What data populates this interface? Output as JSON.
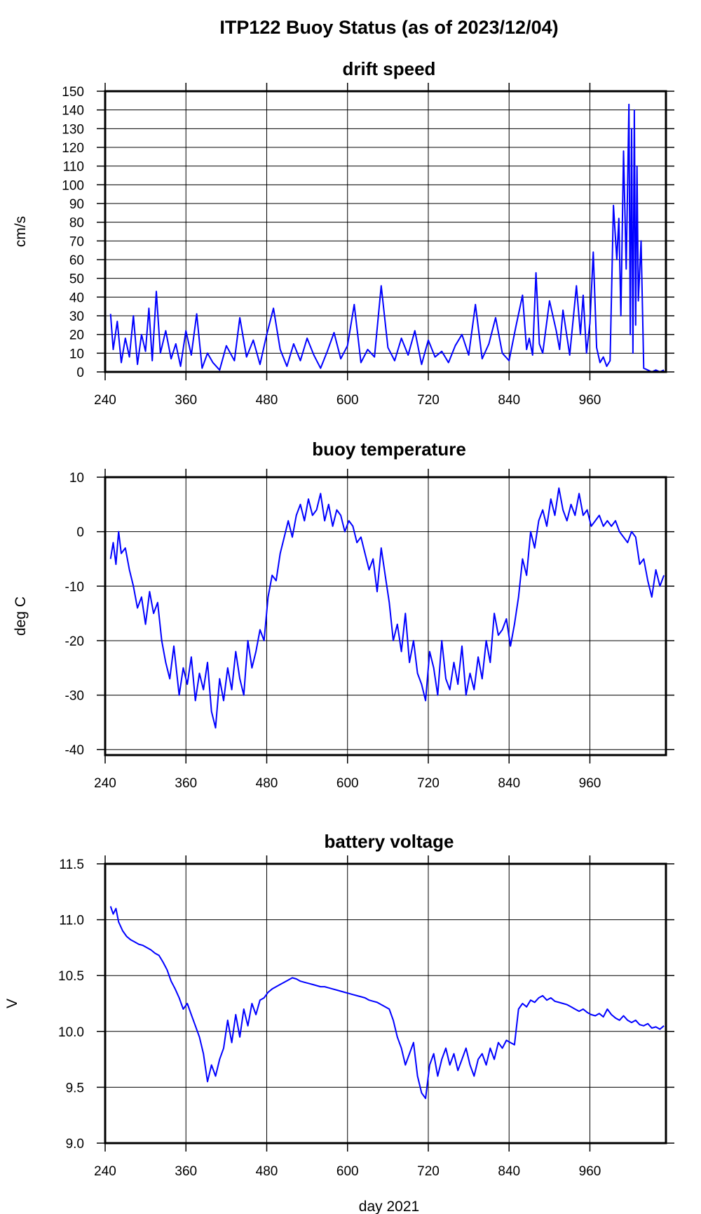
{
  "title": "ITP122 Buoy Status (as of 2023/12/04)",
  "xlabel": "day 2021",
  "colors": {
    "series": "#0000ff",
    "grid": "#000000",
    "background": "#ffffff"
  },
  "chart_data": [
    {
      "type": "line",
      "title": "drift speed",
      "xlabel": "day 2021",
      "ylabel": "cm/s",
      "xlim": [
        240,
        1073
      ],
      "ylim": [
        0,
        150
      ],
      "xticks": [
        240,
        360,
        480,
        600,
        720,
        840,
        960
      ],
      "yticks": [
        0,
        10,
        20,
        30,
        40,
        50,
        60,
        70,
        80,
        90,
        100,
        110,
        120,
        130,
        140,
        150
      ],
      "grid": true,
      "legend": "none",
      "series": [
        {
          "x": [
            248,
            252,
            258,
            264,
            270,
            276,
            282,
            288,
            294,
            300,
            305,
            310,
            316,
            322,
            330,
            338,
            345,
            352,
            360,
            368,
            376,
            384,
            392,
            400,
            410,
            420,
            432,
            440,
            450,
            460,
            470,
            480,
            490,
            500,
            510,
            520,
            530,
            540,
            550,
            560,
            570,
            580,
            590,
            600,
            610,
            620,
            630,
            640,
            650,
            660,
            670,
            680,
            690,
            700,
            710,
            720,
            730,
            740,
            750,
            760,
            770,
            780,
            790,
            800,
            810,
            820,
            830,
            840,
            850,
            860,
            866,
            870,
            875,
            880,
            885,
            890,
            900,
            910,
            915,
            920,
            930,
            940,
            946,
            950,
            955,
            960,
            965,
            970,
            975,
            980,
            985,
            990,
            995,
            1000,
            1003,
            1006,
            1010,
            1014,
            1016,
            1018,
            1020,
            1022,
            1024,
            1026,
            1028,
            1030,
            1032,
            1036,
            1040,
            1046,
            1052,
            1058,
            1064,
            1070
          ],
          "y": [
            31,
            12,
            27,
            5,
            18,
            8,
            30,
            4,
            20,
            11,
            34,
            6,
            43,
            10,
            22,
            7,
            15,
            3,
            22,
            9,
            31,
            2,
            10,
            5,
            1,
            14,
            6,
            29,
            8,
            17,
            4,
            20,
            34,
            12,
            3,
            15,
            6,
            18,
            9,
            2,
            11,
            21,
            7,
            14,
            36,
            5,
            12,
            8,
            46,
            13,
            6,
            18,
            9,
            22,
            4,
            17,
            8,
            11,
            5,
            14,
            20,
            9,
            36,
            7,
            15,
            29,
            10,
            6,
            24,
            41,
            12,
            18,
            9,
            53,
            15,
            10,
            38,
            22,
            12,
            33,
            9,
            46,
            20,
            41,
            10,
            26,
            64,
            13,
            5,
            8,
            3,
            6,
            89,
            60,
            82,
            30,
            118,
            55,
            100,
            143,
            20,
            130,
            10,
            140,
            25,
            110,
            38,
            70,
            2,
            1,
            0,
            1,
            0,
            1
          ]
        }
      ]
    },
    {
      "type": "line",
      "title": "buoy temperature",
      "xlabel": "day 2021",
      "ylabel": "deg C",
      "xlim": [
        240,
        1073
      ],
      "ylim": [
        -41,
        10
      ],
      "xticks": [
        240,
        360,
        480,
        600,
        720,
        840,
        960
      ],
      "yticks": [
        -40,
        -30,
        -20,
        -10,
        0,
        10
      ],
      "grid": true,
      "legend": "none",
      "series": [
        {
          "x": [
            248,
            252,
            256,
            260,
            264,
            270,
            276,
            282,
            288,
            294,
            300,
            306,
            312,
            318,
            324,
            330,
            336,
            342,
            350,
            356,
            362,
            368,
            374,
            380,
            386,
            392,
            398,
            404,
            410,
            416,
            422,
            428,
            434,
            440,
            446,
            452,
            458,
            464,
            470,
            476,
            482,
            488,
            494,
            500,
            506,
            512,
            518,
            524,
            530,
            536,
            542,
            548,
            554,
            560,
            566,
            572,
            578,
            584,
            590,
            596,
            602,
            608,
            614,
            620,
            626,
            632,
            638,
            644,
            650,
            656,
            662,
            668,
            674,
            680,
            686,
            692,
            698,
            704,
            710,
            716,
            722,
            728,
            734,
            740,
            746,
            752,
            758,
            764,
            770,
            776,
            782,
            788,
            794,
            800,
            806,
            812,
            818,
            824,
            830,
            836,
            842,
            848,
            854,
            860,
            866,
            872,
            878,
            884,
            890,
            896,
            902,
            908,
            914,
            920,
            926,
            932,
            938,
            944,
            950,
            956,
            962,
            968,
            974,
            980,
            986,
            992,
            998,
            1004,
            1010,
            1016,
            1022,
            1028,
            1034,
            1040,
            1046,
            1052,
            1058,
            1064,
            1070
          ],
          "y": [
            -5,
            -2,
            -6,
            0,
            -4,
            -3,
            -7,
            -10,
            -14,
            -12,
            -17,
            -11,
            -15,
            -13,
            -20,
            -24,
            -27,
            -21,
            -30,
            -25,
            -28,
            -23,
            -31,
            -26,
            -29,
            -24,
            -33,
            -36,
            -27,
            -31,
            -25,
            -29,
            -22,
            -27,
            -30,
            -20,
            -25,
            -22,
            -18,
            -20,
            -12,
            -8,
            -9,
            -4,
            -1,
            2,
            -1,
            3,
            5,
            2,
            6,
            3,
            4,
            7,
            2,
            5,
            1,
            4,
            3,
            0,
            2,
            1,
            -2,
            -1,
            -4,
            -7,
            -5,
            -11,
            -3,
            -8,
            -13,
            -20,
            -17,
            -22,
            -15,
            -24,
            -20,
            -26,
            -28,
            -31,
            -22,
            -25,
            -30,
            -20,
            -27,
            -29,
            -24,
            -28,
            -21,
            -30,
            -26,
            -29,
            -23,
            -27,
            -20,
            -24,
            -15,
            -19,
            -18,
            -16,
            -21,
            -17,
            -12,
            -5,
            -8,
            0,
            -3,
            2,
            4,
            1,
            6,
            3,
            8,
            4,
            2,
            5,
            3,
            7,
            3,
            4,
            1,
            2,
            3,
            1,
            2,
            1,
            2,
            0,
            -1,
            -2,
            0,
            -1,
            -6,
            -5,
            -9,
            -12,
            -7,
            -10,
            -8
          ]
        }
      ]
    },
    {
      "type": "line",
      "title": "battery voltage",
      "xlabel": "day 2021",
      "ylabel": "V",
      "xlim": [
        240,
        1073
      ],
      "ylim": [
        9.0,
        11.5
      ],
      "xticks": [
        240,
        360,
        480,
        600,
        720,
        840,
        960
      ],
      "yticks": [
        9.0,
        9.5,
        10.0,
        10.5,
        11.0,
        11.5
      ],
      "grid": true,
      "legend": "none",
      "series": [
        {
          "x": [
            248,
            252,
            256,
            260,
            266,
            272,
            278,
            284,
            290,
            296,
            302,
            308,
            314,
            320,
            326,
            332,
            338,
            344,
            350,
            356,
            362,
            368,
            374,
            380,
            386,
            392,
            398,
            404,
            410,
            416,
            422,
            428,
            434,
            440,
            446,
            452,
            458,
            464,
            470,
            476,
            482,
            488,
            494,
            500,
            506,
            512,
            518,
            524,
            530,
            536,
            542,
            548,
            554,
            560,
            566,
            572,
            578,
            584,
            590,
            596,
            602,
            608,
            614,
            620,
            626,
            632,
            638,
            644,
            650,
            656,
            662,
            668,
            674,
            680,
            686,
            692,
            698,
            704,
            710,
            716,
            722,
            728,
            734,
            740,
            746,
            752,
            758,
            764,
            770,
            776,
            782,
            788,
            794,
            800,
            806,
            812,
            818,
            824,
            830,
            836,
            842,
            848,
            854,
            860,
            866,
            872,
            878,
            884,
            890,
            896,
            902,
            908,
            914,
            920,
            926,
            932,
            938,
            944,
            950,
            956,
            962,
            968,
            974,
            980,
            986,
            992,
            998,
            1004,
            1010,
            1016,
            1022,
            1028,
            1034,
            1040,
            1046,
            1052,
            1058,
            1064,
            1070
          ],
          "y": [
            11.12,
            11.05,
            11.1,
            10.98,
            10.9,
            10.85,
            10.82,
            10.8,
            10.78,
            10.77,
            10.75,
            10.73,
            10.7,
            10.68,
            10.62,
            10.55,
            10.45,
            10.38,
            10.3,
            10.2,
            10.25,
            10.15,
            10.05,
            9.95,
            9.8,
            9.55,
            9.7,
            9.6,
            9.75,
            9.85,
            10.1,
            9.9,
            10.15,
            9.95,
            10.2,
            10.05,
            10.25,
            10.15,
            10.28,
            10.3,
            10.35,
            10.38,
            10.4,
            10.42,
            10.44,
            10.46,
            10.48,
            10.47,
            10.45,
            10.44,
            10.43,
            10.42,
            10.41,
            10.4,
            10.4,
            10.39,
            10.38,
            10.37,
            10.36,
            10.35,
            10.34,
            10.33,
            10.32,
            10.31,
            10.3,
            10.28,
            10.27,
            10.26,
            10.24,
            10.22,
            10.2,
            10.1,
            9.95,
            9.85,
            9.7,
            9.8,
            9.9,
            9.6,
            9.45,
            9.4,
            9.7,
            9.8,
            9.6,
            9.75,
            9.85,
            9.7,
            9.8,
            9.65,
            9.75,
            9.85,
            9.7,
            9.6,
            9.75,
            9.8,
            9.7,
            9.85,
            9.75,
            9.9,
            9.85,
            9.92,
            9.9,
            9.88,
            10.2,
            10.25,
            10.22,
            10.28,
            10.26,
            10.3,
            10.32,
            10.28,
            10.3,
            10.27,
            10.26,
            10.25,
            10.24,
            10.22,
            10.2,
            10.18,
            10.2,
            10.17,
            10.15,
            10.14,
            10.16,
            10.13,
            10.2,
            10.15,
            10.12,
            10.1,
            10.14,
            10.1,
            10.08,
            10.1,
            10.06,
            10.05,
            10.07,
            10.03,
            10.04,
            10.02,
            10.05
          ]
        }
      ]
    }
  ]
}
